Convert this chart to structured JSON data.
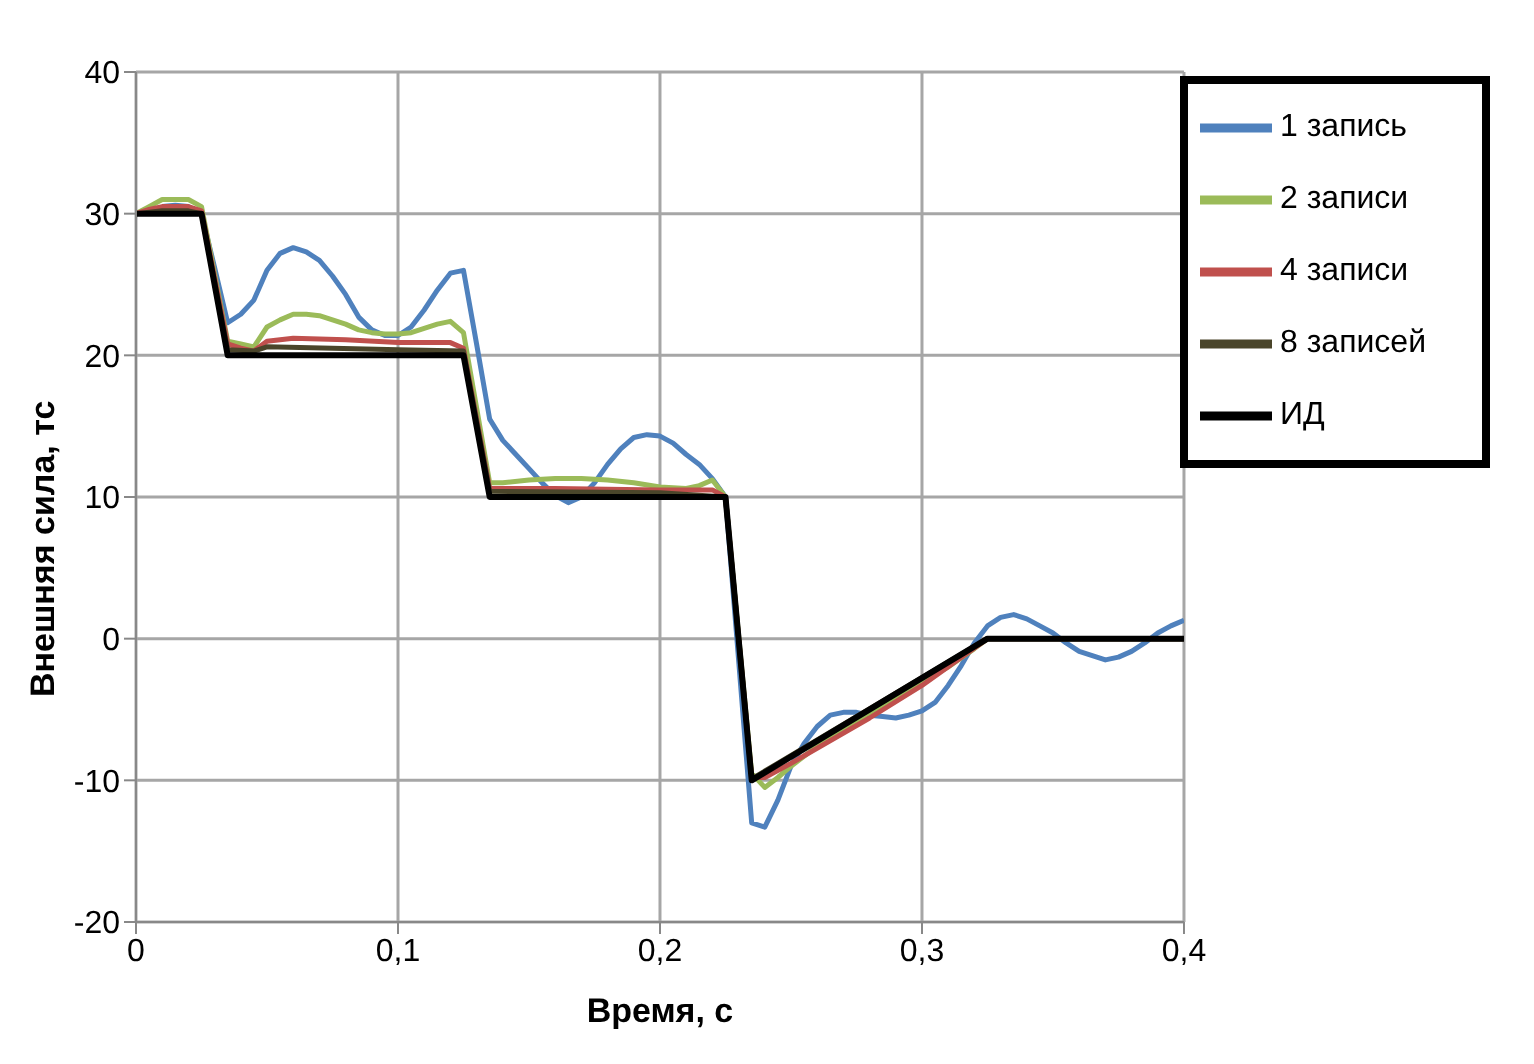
{
  "chart_data": {
    "type": "line",
    "xlabel": "Время, с",
    "ylabel": "Внешняя сила, тс",
    "xlim": [
      0,
      0.4
    ],
    "xticks": [
      0,
      {
        "value": 0.1,
        "label": "0,1"
      },
      {
        "value": 0.2,
        "label": "0,2"
      },
      {
        "value": 0.3,
        "label": "0,3"
      },
      {
        "value": 0.4,
        "label": "0,4"
      }
    ],
    "ylim": [
      -20,
      40
    ],
    "yticks": [
      -20,
      -10,
      0,
      10,
      20,
      30,
      40
    ],
    "grid": true,
    "legend": "top right",
    "marker": "none",
    "line_style": "solid",
    "series": [
      {
        "name": "1 запись",
        "color": "#4f81bd",
        "x": [
          0.01,
          0.015,
          0.02,
          0.025,
          0.03,
          0.035,
          0.04,
          0.045,
          0.05,
          0.055,
          0.06,
          0.065,
          0.07,
          0.075,
          0.08,
          0.085,
          0.09,
          0.095,
          0.1,
          0.105,
          0.11,
          0.115,
          0.12,
          0.125,
          0.13,
          0.135,
          0.14,
          0.145,
          0.15,
          0.155,
          0.16,
          0.165,
          0.17,
          0.175,
          0.18,
          0.185,
          0.19,
          0.195,
          0.2,
          0.205,
          0.21,
          0.215,
          0.22,
          0.225,
          0.23,
          0.235,
          0.24,
          0.245,
          0.25,
          0.255,
          0.26,
          0.265,
          0.27,
          0.275,
          0.28,
          0.285,
          0.29,
          0.295,
          0.3,
          0.305,
          0.31,
          0.315,
          0.32,
          0.325,
          0.33,
          0.335,
          0.34,
          0.345,
          0.35,
          0.355,
          0.36,
          0.365,
          0.37,
          0.375,
          0.38,
          0.385,
          0.39,
          0.395,
          0.4
        ],
        "values": [
          30.5,
          30.6,
          30.5,
          30,
          26.2,
          22.3,
          22.9,
          23.9,
          26,
          27.2,
          27.6,
          27.3,
          26.7,
          25.6,
          24.3,
          22.7,
          21.8,
          21.4,
          21.4,
          22,
          23.2,
          24.6,
          25.8,
          26,
          20.8,
          15.5,
          14,
          13,
          12,
          11,
          10.1,
          9.6,
          10,
          11,
          12.3,
          13.4,
          14.2,
          14.4,
          14.3,
          13.8,
          13,
          12.3,
          11.3,
          10,
          -1.5,
          -13,
          -13.3,
          -11.4,
          -9,
          -7.4,
          -6.2,
          -5.4,
          -5.2,
          -5.2,
          -5.4,
          -5.5,
          -5.6,
          -5.4,
          -5.1,
          -4.5,
          -3.3,
          -1.9,
          -0.3,
          0.9,
          1.5,
          1.7,
          1.4,
          0.9,
          0.4,
          -0.3,
          -0.9,
          -1.2,
          -1.5,
          -1.3,
          -0.9,
          -0.3,
          0.4,
          0.9,
          1.3
        ]
      },
      {
        "name": "2 записи",
        "color": "#9bbb59",
        "x": [
          0,
          0.005,
          0.01,
          0.015,
          0.02,
          0.025,
          0.035,
          0.04,
          0.045,
          0.05,
          0.055,
          0.06,
          0.065,
          0.07,
          0.075,
          0.08,
          0.085,
          0.09,
          0.095,
          0.1,
          0.105,
          0.11,
          0.115,
          0.12,
          0.125,
          0.135,
          0.14,
          0.15,
          0.16,
          0.17,
          0.18,
          0.19,
          0.2,
          0.21,
          0.215,
          0.22,
          0.225,
          0.235,
          0.24,
          0.245,
          0.25,
          0.26,
          0.27,
          0.28,
          0.29,
          0.3,
          0.31,
          0.32,
          0.325,
          0.4
        ],
        "values": [
          30,
          30.5,
          31,
          31,
          31,
          30.5,
          21,
          20.8,
          20.6,
          22,
          22.5,
          22.9,
          22.9,
          22.8,
          22.5,
          22.2,
          21.8,
          21.6,
          21.5,
          21.5,
          21.6,
          21.9,
          22.2,
          22.4,
          21.6,
          11,
          11,
          11.2,
          11.3,
          11.3,
          11.2,
          11,
          10.7,
          10.6,
          10.8,
          11.2,
          10,
          -9.5,
          -10.5,
          -9.8,
          -9,
          -7.6,
          -6.5,
          -5.3,
          -4.1,
          -3,
          -2,
          -0.7,
          0,
          0
        ]
      },
      {
        "name": "4 записи",
        "color": "#c0504d",
        "x": [
          0,
          0.005,
          0.01,
          0.02,
          0.025,
          0.035,
          0.04,
          0.045,
          0.05,
          0.06,
          0.08,
          0.1,
          0.12,
          0.125,
          0.135,
          0.14,
          0.16,
          0.2,
          0.22,
          0.225,
          0.235,
          0.24,
          0.25,
          0.28,
          0.3,
          0.325,
          0.4
        ],
        "values": [
          30,
          30.3,
          30.5,
          30.5,
          30.2,
          20.8,
          20.5,
          20.3,
          21,
          21.2,
          21.1,
          20.9,
          20.9,
          20.5,
          10.6,
          10.6,
          10.6,
          10.5,
          10.5,
          10,
          -9.8,
          -9.8,
          -8.8,
          -5.6,
          -3.3,
          0,
          0
        ]
      },
      {
        "name": "8 записей",
        "color": "#4a452a",
        "x": [
          0,
          0.01,
          0.02,
          0.025,
          0.035,
          0.045,
          0.05,
          0.1,
          0.125,
          0.135,
          0.2,
          0.225,
          0.235,
          0.325,
          0.4
        ],
        "values": [
          30,
          30.2,
          30.2,
          30,
          20.4,
          20.3,
          20.6,
          20.4,
          20.3,
          10.4,
          10.3,
          10,
          -9.9,
          0,
          0
        ]
      },
      {
        "name": "ИД",
        "color": "#000000",
        "x": [
          0,
          0.025,
          0.035,
          0.125,
          0.135,
          0.225,
          0.235,
          0.325,
          0.4
        ],
        "values": [
          30,
          30,
          20,
          20,
          10,
          10,
          -10,
          0,
          0
        ]
      }
    ]
  }
}
